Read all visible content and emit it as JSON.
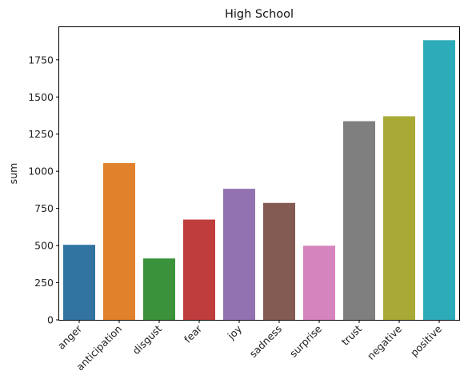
{
  "chart_data": {
    "type": "bar",
    "title": "High School",
    "xlabel": "",
    "ylabel": "sum",
    "categories": [
      "anger",
      "anticipation",
      "disgust",
      "fear",
      "joy",
      "sadness",
      "surprise",
      "trust",
      "negative",
      "positive"
    ],
    "values": [
      505,
      1055,
      413,
      675,
      882,
      787,
      499,
      1337,
      1370,
      1882
    ],
    "colors": [
      "#3274a1",
      "#e1812c",
      "#3a923a",
      "#c03d3e",
      "#9372b2",
      "#845b53",
      "#d684bd",
      "#7f7f7f",
      "#a9aa35",
      "#2eabb8"
    ],
    "ylim": [
      0,
      1975
    ],
    "yticks": [
      0,
      250,
      500,
      750,
      1000,
      1250,
      1500,
      1750
    ],
    "grid": false,
    "legend": "none"
  }
}
